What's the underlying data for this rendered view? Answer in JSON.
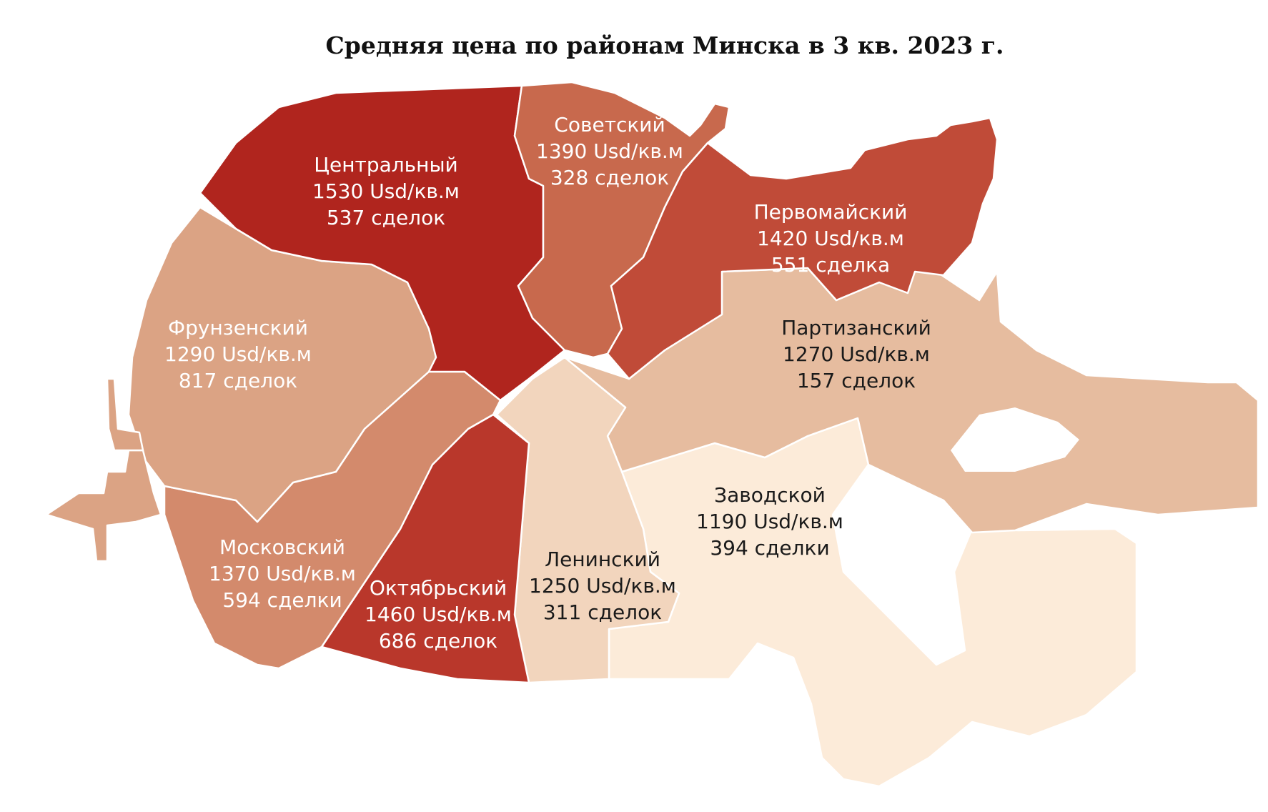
{
  "title": "Средняя цена по районам Минска в 3 кв. 2023 г.",
  "unit_label": "Usd/кв.м",
  "districts": [
    {
      "id": "central",
      "name": "Центральный",
      "price": "1530 Usd/кв.м",
      "deals": "537 сделок",
      "color": "#b0251e",
      "text_color": "#ffffff"
    },
    {
      "id": "sovetsky",
      "name": "Советский",
      "price": "1390 Usd/кв.м",
      "deals": "328 сделок",
      "color": "#c8694d",
      "text_color": "#ffffff"
    },
    {
      "id": "pervomaisky",
      "name": "Первомайский",
      "price": "1420 Usd/кв.м",
      "deals": "551 сделка",
      "color": "#c04b38",
      "text_color": "#ffffff"
    },
    {
      "id": "frunzensky",
      "name": "Фрунзенский",
      "price": "1290 Usd/кв.м",
      "deals": "817 сделок",
      "color": "#dba384",
      "text_color": "#ffffff"
    },
    {
      "id": "partizansky",
      "name": "Партизанский",
      "price": "1270 Usd/кв.м",
      "deals": "157 сделок",
      "color": "#e6bc9f",
      "text_color": "#1a1a1a"
    },
    {
      "id": "moskovsky",
      "name": "Московский",
      "price": "1370 Usd/кв.м",
      "deals": "594 сделки",
      "color": "#d38a6c",
      "text_color": "#ffffff"
    },
    {
      "id": "oktyabrsky",
      "name": "Октябрьский",
      "price": "1460 Usd/кв.м",
      "deals": "686 сделок",
      "color": "#b9372b",
      "text_color": "#ffffff"
    },
    {
      "id": "leninsky",
      "name": "Ленинский",
      "price": "1250 Usd/кв.м",
      "deals": "311 сделок",
      "color": "#f2d5bd",
      "text_color": "#1a1a1a"
    },
    {
      "id": "zavodskoy",
      "name": "Заводской",
      "price": "1190 Usd/кв.м",
      "deals": "394 сделки",
      "color": "#fcebd9",
      "text_color": "#1a1a1a"
    }
  ]
}
